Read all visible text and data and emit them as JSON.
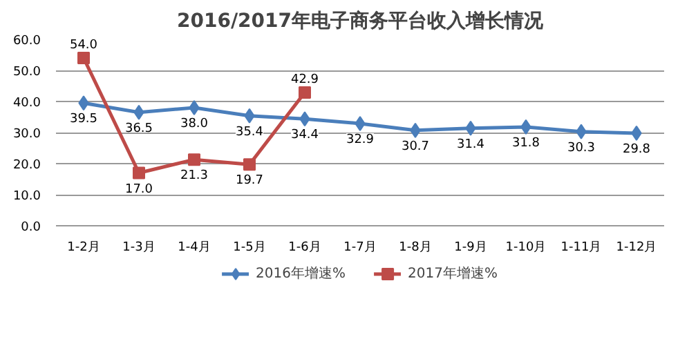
{
  "chart_data": {
    "type": "line",
    "title": "2016/2017年电子商务平台收入增长情况",
    "categories": [
      "1-2月",
      "1-3月",
      "1-4月",
      "1-5月",
      "1-6月",
      "1-7月",
      "1-8月",
      "1-9月",
      "1-10月",
      "1-11月",
      "1-12月"
    ],
    "series": [
      {
        "name": "2016年增速%",
        "color": "#4a7ebb",
        "marker": "diamond",
        "values": [
          39.5,
          36.5,
          38.0,
          35.4,
          34.4,
          32.9,
          30.7,
          31.4,
          31.8,
          30.3,
          29.8
        ],
        "value_labels": [
          "39.5",
          "36.5",
          "38.0",
          "35.4",
          "34.4",
          "32.9",
          "30.7",
          "31.4",
          "31.8",
          "30.3",
          "29.8"
        ]
      },
      {
        "name": "2017年增速%",
        "color": "#be4b48",
        "marker": "square",
        "values": [
          54.0,
          17.0,
          21.3,
          19.7,
          42.9,
          null,
          null,
          null,
          null,
          null,
          null
        ],
        "value_labels": [
          "54.0",
          "17.0",
          "21.3",
          "19.7",
          "42.9",
          null,
          null,
          null,
          null,
          null,
          null
        ]
      }
    ],
    "ylim": [
      0,
      60
    ],
    "yticks": [
      {
        "value": 0,
        "label": "0.0"
      },
      {
        "value": 10,
        "label": "10.0"
      },
      {
        "value": 20,
        "label": "20.0"
      },
      {
        "value": 30,
        "label": "30.0"
      },
      {
        "value": 40,
        "label": "40.0"
      },
      {
        "value": 50,
        "label": "50.0"
      },
      {
        "value": 60,
        "label": "60.0"
      }
    ],
    "grid": "y",
    "legend": "bottom",
    "line_style": "solid"
  }
}
